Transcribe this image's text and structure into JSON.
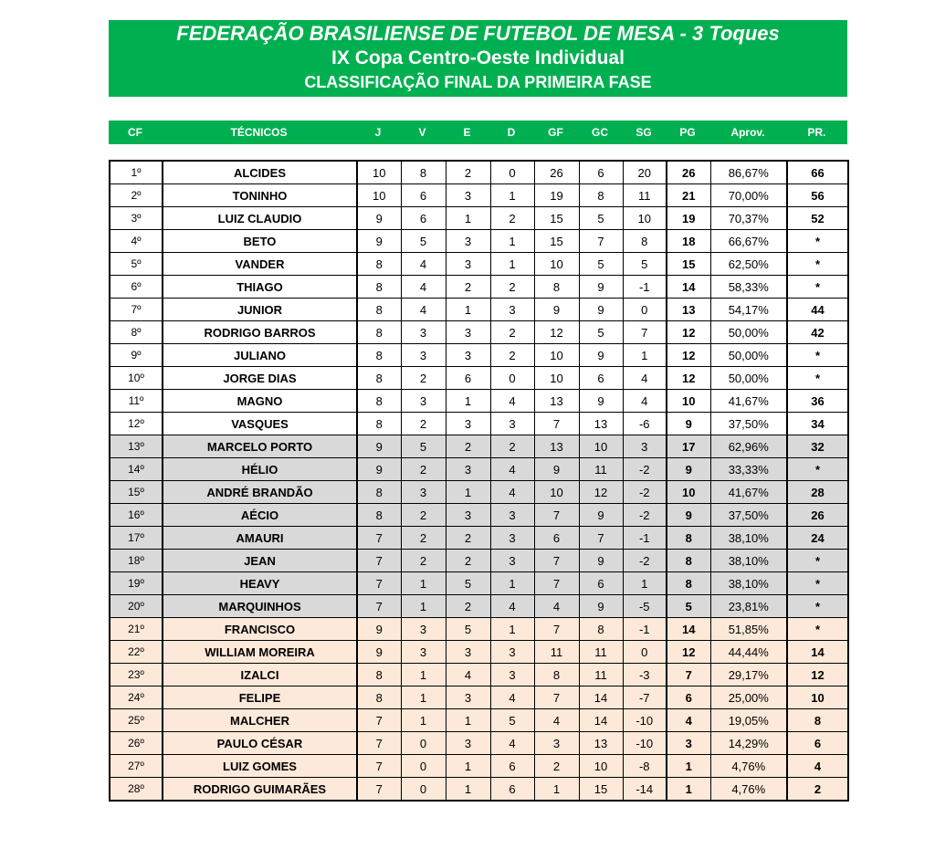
{
  "header": {
    "title": "FEDERAÇÃO BRASILIENSE DE FUTEBOL DE MESA - 3 Toques",
    "subtitle": "IX Copa Centro-Oeste Individual",
    "section": "CLASSIFICAÇÃO FINAL DA PRIMEIRA FASE"
  },
  "colors": {
    "header_green": "#00b050",
    "group_top": "#ffffff",
    "group_mid": "#d9d9d9",
    "group_bottom": "#fde9d9"
  },
  "columns": [
    "CF",
    "TÉCNICOS",
    "J",
    "V",
    "E",
    "D",
    "GF",
    "GC",
    "SG",
    "PG",
    "Aprov.",
    "PR."
  ],
  "rows": [
    {
      "group": "white",
      "cells": [
        "1º",
        "ALCIDES",
        "10",
        "8",
        "2",
        "0",
        "26",
        "6",
        "20",
        "26",
        "86,67%",
        "66"
      ]
    },
    {
      "group": "white",
      "cells": [
        "2º",
        "TONINHO",
        "10",
        "6",
        "3",
        "1",
        "19",
        "8",
        "11",
        "21",
        "70,00%",
        "56"
      ]
    },
    {
      "group": "white",
      "cells": [
        "3º",
        "LUIZ CLAUDIO",
        "9",
        "6",
        "1",
        "2",
        "15",
        "5",
        "10",
        "19",
        "70,37%",
        "52"
      ]
    },
    {
      "group": "white",
      "cells": [
        "4º",
        "BETO",
        "9",
        "5",
        "3",
        "1",
        "15",
        "7",
        "8",
        "18",
        "66,67%",
        "*"
      ]
    },
    {
      "group": "white",
      "cells": [
        "5º",
        "VANDER",
        "8",
        "4",
        "3",
        "1",
        "10",
        "5",
        "5",
        "15",
        "62,50%",
        "*"
      ]
    },
    {
      "group": "white",
      "cells": [
        "6º",
        "THIAGO",
        "8",
        "4",
        "2",
        "2",
        "8",
        "9",
        "-1",
        "14",
        "58,33%",
        "*"
      ]
    },
    {
      "group": "white",
      "cells": [
        "7º",
        "JUNIOR",
        "8",
        "4",
        "1",
        "3",
        "9",
        "9",
        "0",
        "13",
        "54,17%",
        "44"
      ]
    },
    {
      "group": "white",
      "cells": [
        "8º",
        "RODRIGO BARROS",
        "8",
        "3",
        "3",
        "2",
        "12",
        "5",
        "7",
        "12",
        "50,00%",
        "42"
      ]
    },
    {
      "group": "white",
      "cells": [
        "9º",
        "JULIANO",
        "8",
        "3",
        "3",
        "2",
        "10",
        "9",
        "1",
        "12",
        "50,00%",
        "*"
      ]
    },
    {
      "group": "white",
      "cells": [
        "10º",
        "JORGE DIAS",
        "8",
        "2",
        "6",
        "0",
        "10",
        "6",
        "4",
        "12",
        "50,00%",
        "*"
      ]
    },
    {
      "group": "white",
      "cells": [
        "11º",
        "MAGNO",
        "8",
        "3",
        "1",
        "4",
        "13",
        "9",
        "4",
        "10",
        "41,67%",
        "36"
      ]
    },
    {
      "group": "white",
      "cells": [
        "12º",
        "VASQUES",
        "8",
        "2",
        "3",
        "3",
        "7",
        "13",
        "-6",
        "9",
        "37,50%",
        "34"
      ]
    },
    {
      "group": "gray",
      "cells": [
        "13º",
        "MARCELO PORTO",
        "9",
        "5",
        "2",
        "2",
        "13",
        "10",
        "3",
        "17",
        "62,96%",
        "32"
      ]
    },
    {
      "group": "gray",
      "cells": [
        "14º",
        "HÉLIO",
        "9",
        "2",
        "3",
        "4",
        "9",
        "11",
        "-2",
        "9",
        "33,33%",
        "*"
      ]
    },
    {
      "group": "gray",
      "cells": [
        "15º",
        "ANDRÉ BRANDÃO",
        "8",
        "3",
        "1",
        "4",
        "10",
        "12",
        "-2",
        "10",
        "41,67%",
        "28"
      ]
    },
    {
      "group": "gray",
      "cells": [
        "16º",
        "AÉCIO",
        "8",
        "2",
        "3",
        "3",
        "7",
        "9",
        "-2",
        "9",
        "37,50%",
        "26"
      ]
    },
    {
      "group": "gray",
      "cells": [
        "17º",
        "AMAURI",
        "7",
        "2",
        "2",
        "3",
        "6",
        "7",
        "-1",
        "8",
        "38,10%",
        "24"
      ]
    },
    {
      "group": "gray",
      "cells": [
        "18º",
        "JEAN",
        "7",
        "2",
        "2",
        "3",
        "7",
        "9",
        "-2",
        "8",
        "38,10%",
        "*"
      ]
    },
    {
      "group": "gray",
      "cells": [
        "19º",
        "HEAVY",
        "7",
        "1",
        "5",
        "1",
        "7",
        "6",
        "1",
        "8",
        "38,10%",
        "*"
      ]
    },
    {
      "group": "gray",
      "cells": [
        "20º",
        "MARQUINHOS",
        "7",
        "1",
        "2",
        "4",
        "4",
        "9",
        "-5",
        "5",
        "23,81%",
        "*"
      ]
    },
    {
      "group": "peach",
      "cells": [
        "21º",
        "FRANCISCO",
        "9",
        "3",
        "5",
        "1",
        "7",
        "8",
        "-1",
        "14",
        "51,85%",
        "*"
      ]
    },
    {
      "group": "peach",
      "cells": [
        "22º",
        "WILLIAM MOREIRA",
        "9",
        "3",
        "3",
        "3",
        "11",
        "11",
        "0",
        "12",
        "44,44%",
        "14"
      ]
    },
    {
      "group": "peach",
      "cells": [
        "23º",
        "IZALCI",
        "8",
        "1",
        "4",
        "3",
        "8",
        "11",
        "-3",
        "7",
        "29,17%",
        "12"
      ]
    },
    {
      "group": "peach",
      "cells": [
        "24º",
        "FELIPE",
        "8",
        "1",
        "3",
        "4",
        "7",
        "14",
        "-7",
        "6",
        "25,00%",
        "10"
      ]
    },
    {
      "group": "peach",
      "cells": [
        "25º",
        "MALCHER",
        "7",
        "1",
        "1",
        "5",
        "4",
        "14",
        "-10",
        "4",
        "19,05%",
        "8"
      ]
    },
    {
      "group": "peach",
      "cells": [
        "26º",
        "PAULO CÉSAR",
        "7",
        "0",
        "3",
        "4",
        "3",
        "13",
        "-10",
        "3",
        "14,29%",
        "6"
      ]
    },
    {
      "group": "peach",
      "cells": [
        "27º",
        "LUIZ GOMES",
        "7",
        "0",
        "1",
        "6",
        "2",
        "10",
        "-8",
        "1",
        "4,76%",
        "4"
      ]
    },
    {
      "group": "peach",
      "cells": [
        "28º",
        "RODRIGO GUIMARÃES",
        "7",
        "0",
        "1",
        "6",
        "1",
        "15",
        "-14",
        "1",
        "4,76%",
        "2"
      ]
    }
  ]
}
